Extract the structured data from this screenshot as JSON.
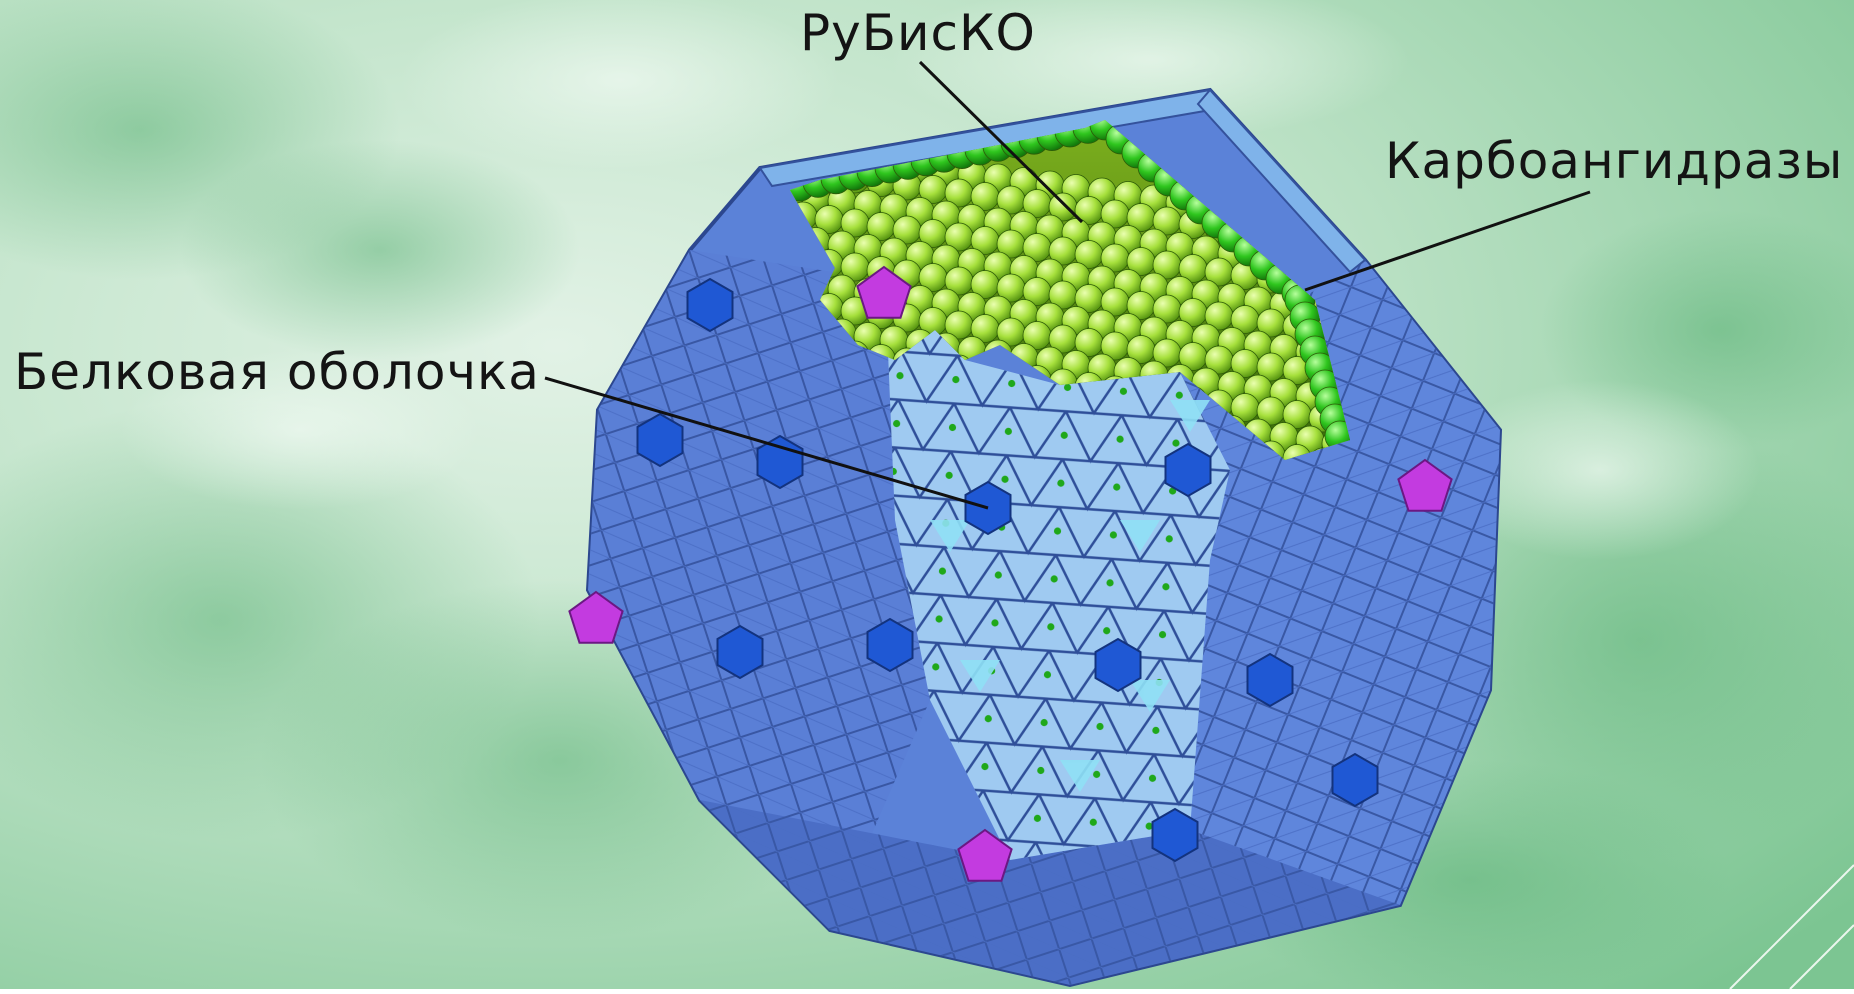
{
  "labels": {
    "rubisco": "РуБисКО",
    "carbonic_anhydrases": "Карбоангидразы",
    "protein_shell": "Белковая оболочка"
  },
  "colors": {
    "background_light": "#d5ecdc",
    "background_mid": "#a7d8b4",
    "background_dark": "#6fbd86",
    "shell_blue": "#5b82d8",
    "shell_edge": "#3b5bb4",
    "shell_light_tile": "#8fd2ee",
    "hexamer_dark": "#1f58d4",
    "pentamer_magenta": "#c33be0",
    "rubisco_sphere": "#a6e03c",
    "carbonic_anhydrase_sphere": "#2fc61e",
    "label_text": "#141414"
  }
}
